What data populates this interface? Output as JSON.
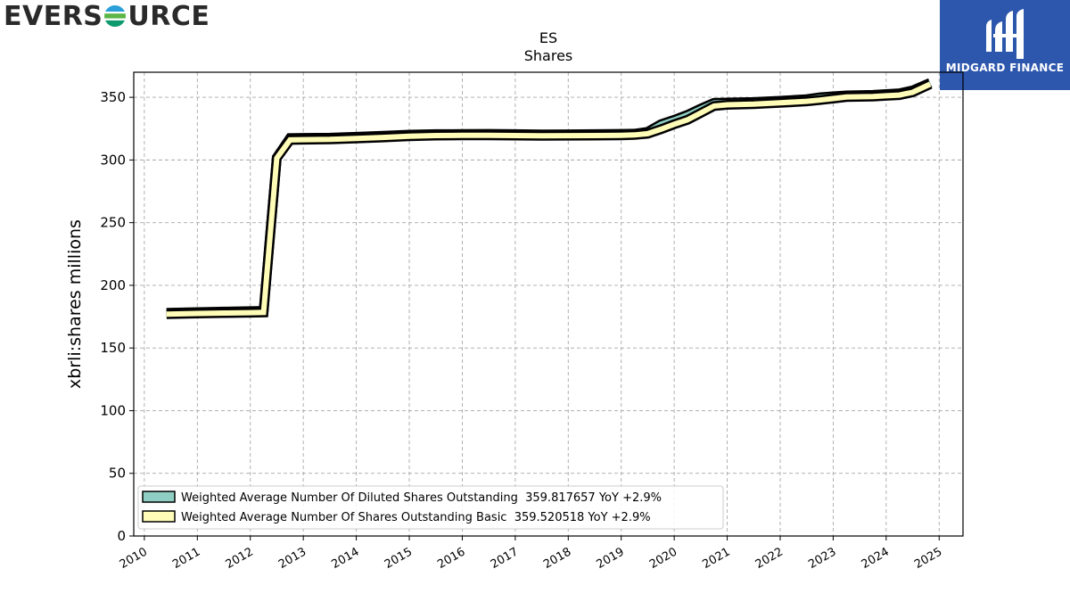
{
  "branding": {
    "left_logo_text_a": "EVERS",
    "left_logo_text_b": "URCE",
    "right_logo_text": "MIDGARD FINANCE"
  },
  "chart_data": {
    "type": "line",
    "title": "ES",
    "subtitle": "Shares",
    "xlabel": "",
    "ylabel": "xbrli:shares millions",
    "xlim": [
      2009.8,
      2025.45
    ],
    "ylim": [
      0,
      370
    ],
    "x_ticks": [
      2010,
      2011,
      2012,
      2013,
      2014,
      2015,
      2016,
      2017,
      2018,
      2019,
      2020,
      2021,
      2022,
      2023,
      2024,
      2025
    ],
    "y_ticks": [
      0,
      50,
      100,
      150,
      200,
      250,
      300,
      350
    ],
    "grid": true,
    "legend_position": "lower-left",
    "series": [
      {
        "name": "Weighted Average Number Of Diluted Shares Outstanding  359.817657 YoY +2.9%",
        "color": "#8fcfc3",
        "x": [
          2010.42,
          2011.0,
          2011.5,
          2012.0,
          2012.25,
          2012.5,
          2012.75,
          2013.0,
          2013.5,
          2014.0,
          2014.5,
          2015.0,
          2015.5,
          2016.0,
          2016.5,
          2017.0,
          2017.5,
          2018.0,
          2018.5,
          2019.0,
          2019.25,
          2019.5,
          2019.75,
          2020.0,
          2020.25,
          2020.5,
          2020.75,
          2021.0,
          2021.5,
          2022.0,
          2022.5,
          2022.75,
          2023.0,
          2023.25,
          2023.75,
          2024.0,
          2024.25,
          2024.5,
          2024.83
        ],
        "y": [
          178.0,
          178.6,
          179.0,
          179.4,
          179.6,
          302.0,
          317.5,
          317.6,
          317.8,
          318.5,
          319.3,
          320.2,
          320.6,
          320.7,
          320.8,
          320.6,
          320.4,
          320.5,
          320.6,
          320.8,
          321.0,
          322.5,
          328.5,
          332.0,
          336.0,
          341.0,
          345.5,
          345.8,
          346.2,
          347.2,
          348.5,
          350.0,
          350.8,
          351.5,
          351.9,
          352.6,
          353.2,
          355.5,
          361.5
        ]
      },
      {
        "name": "Weighted Average Number Of Shares Outstanding Basic  359.520518 YoY +2.9%",
        "color": "#fffcb8",
        "x": [
          2010.42,
          2011.0,
          2011.5,
          2012.0,
          2012.25,
          2012.5,
          2012.75,
          2013.0,
          2013.5,
          2014.0,
          2014.5,
          2015.0,
          2015.5,
          2016.0,
          2016.5,
          2017.0,
          2017.5,
          2018.0,
          2018.5,
          2019.0,
          2019.25,
          2019.5,
          2019.75,
          2020.0,
          2020.25,
          2020.5,
          2020.75,
          2021.0,
          2021.5,
          2022.0,
          2022.5,
          2022.75,
          2023.0,
          2023.25,
          2023.75,
          2024.0,
          2024.25,
          2024.5,
          2024.83
        ],
        "y": [
          177.0,
          177.5,
          177.9,
          178.2,
          178.4,
          301.5,
          316.0,
          316.2,
          316.4,
          317.2,
          318.0,
          319.0,
          319.5,
          319.6,
          319.7,
          319.5,
          319.3,
          319.4,
          319.5,
          319.7,
          320.0,
          321.0,
          324.5,
          328.5,
          332.0,
          337.5,
          343.0,
          344.0,
          344.5,
          345.6,
          346.8,
          347.8,
          349.0,
          350.2,
          350.6,
          351.2,
          351.8,
          354.0,
          360.5
        ]
      }
    ]
  }
}
